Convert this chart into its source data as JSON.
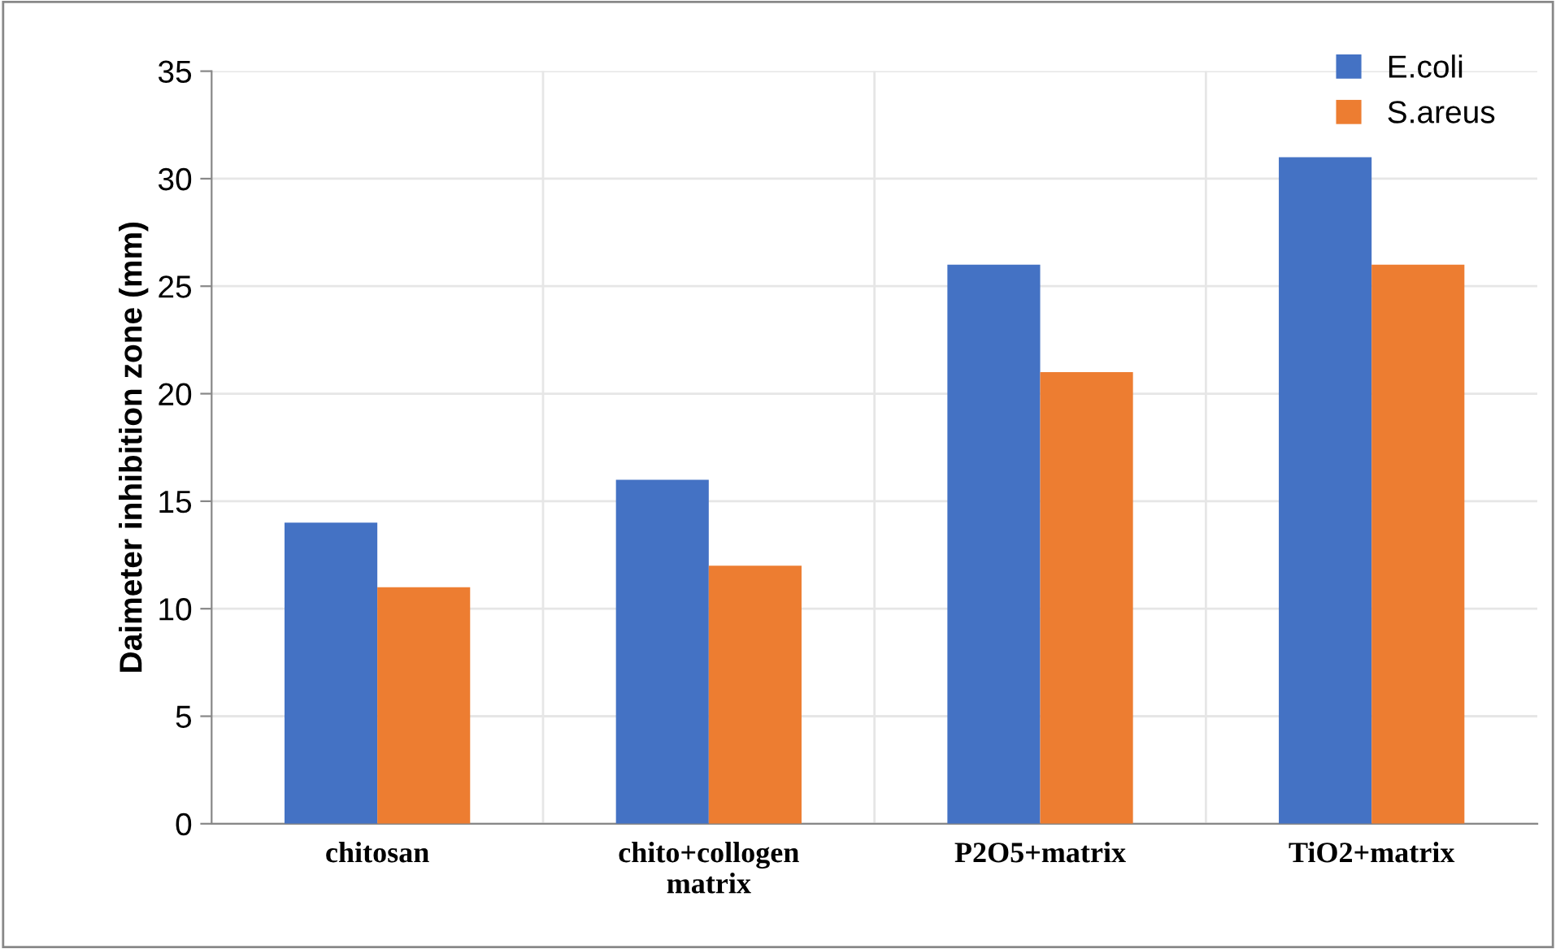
{
  "chart_data": {
    "type": "bar",
    "ylabel": "Daimeter inhibition zone (mm)",
    "categories": [
      "chitosan",
      "chito+collogen\nmatrix",
      "P2O5+matrix",
      "TiO2+matrix"
    ],
    "series": [
      {
        "name": "E.coli",
        "color": "#4472c4",
        "values": [
          14,
          16,
          26,
          31
        ]
      },
      {
        "name": "S.areus",
        "color": "#ed7d31",
        "values": [
          11,
          12,
          21,
          26
        ]
      }
    ],
    "ylim": [
      0,
      35
    ],
    "yticks": [
      0,
      5,
      10,
      15,
      20,
      25,
      30,
      35
    ],
    "grid": true,
    "legend": "top right"
  }
}
